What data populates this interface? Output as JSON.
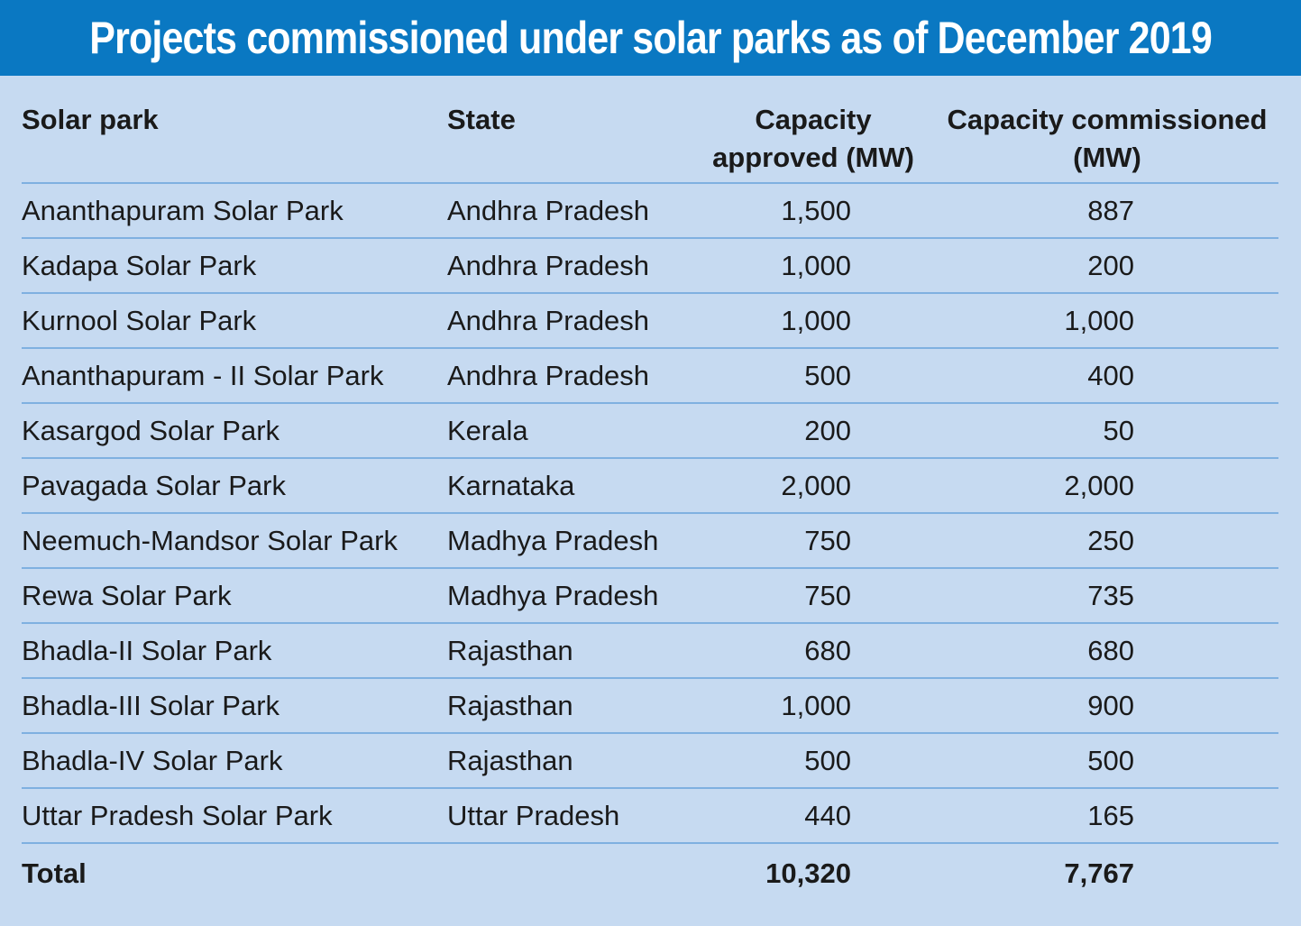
{
  "chart_data": {
    "type": "table",
    "title": "Projects commissioned under solar parks as of December 2019",
    "columns": [
      "Solar park",
      "State",
      "Capacity approved (MW)",
      "Capacity commissioned (MW)"
    ],
    "rows": [
      {
        "park": "Ananthapuram Solar Park",
        "state": "Andhra Pradesh",
        "approved": "1,500",
        "commissioned": "887"
      },
      {
        "park": "Kadapa Solar Park",
        "state": "Andhra Pradesh",
        "approved": "1,000",
        "commissioned": "200"
      },
      {
        "park": "Kurnool Solar Park",
        "state": "Andhra Pradesh",
        "approved": "1,000",
        "commissioned": "1,000"
      },
      {
        "park": "Ananthapuram - II Solar Park",
        "state": "Andhra Pradesh",
        "approved": "500",
        "commissioned": "400"
      },
      {
        "park": "Kasargod Solar Park",
        "state": "Kerala",
        "approved": "200",
        "commissioned": "50"
      },
      {
        "park": "Pavagada Solar Park",
        "state": "Karnataka",
        "approved": "2,000",
        "commissioned": "2,000"
      },
      {
        "park": "Neemuch-Mandsor Solar Park",
        "state": "Madhya Pradesh",
        "approved": "750",
        "commissioned": "250"
      },
      {
        "park": "Rewa Solar Park",
        "state": "Madhya Pradesh",
        "approved": "750",
        "commissioned": "735"
      },
      {
        "park": "Bhadla-II Solar Park",
        "state": "Rajasthan",
        "approved": "680",
        "commissioned": "680"
      },
      {
        "park": "Bhadla-III Solar Park",
        "state": "Rajasthan",
        "approved": "1,000",
        "commissioned": "900"
      },
      {
        "park": "Bhadla-IV Solar Park",
        "state": "Rajasthan",
        "approved": "500",
        "commissioned": "500"
      },
      {
        "park": "Uttar Pradesh Solar Park",
        "state": "Uttar Pradesh",
        "approved": "440",
        "commissioned": "165"
      }
    ],
    "total": {
      "label": "Total",
      "approved": "10,320",
      "commissioned": "7,767"
    }
  },
  "colors": {
    "title_bar": "#0a78c2",
    "title_text": "#ffffff",
    "background": "#c6daf1",
    "rule": "#7fb0e0",
    "text": "#1a1a1a"
  }
}
